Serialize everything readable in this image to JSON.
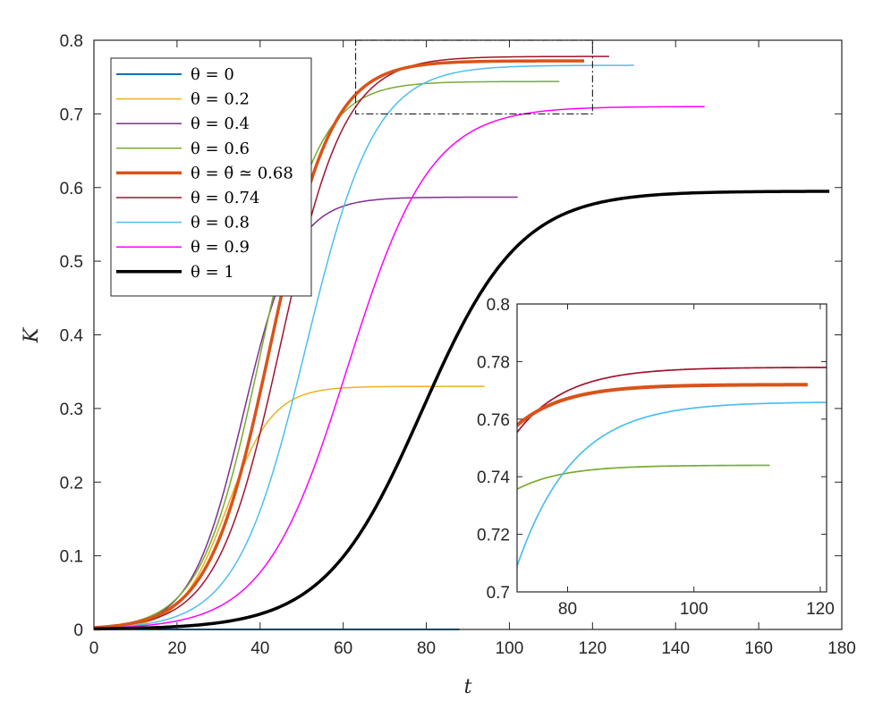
{
  "chart_data": {
    "type": "line",
    "title": "",
    "xlabel": "t",
    "ylabel": "K",
    "xlim": [
      0,
      180
    ],
    "ylim": [
      0,
      0.8
    ],
    "xticks": [
      "0",
      "20",
      "40",
      "60",
      "80",
      "100",
      "120",
      "140",
      "160",
      "180"
    ],
    "yticks": [
      "0",
      "0.1",
      "0.2",
      "0.3",
      "0.4",
      "0.5",
      "0.6",
      "0.7",
      "0.8"
    ],
    "legend_position": "top-left",
    "series": [
      {
        "name": "θ = 0",
        "color": "#0072BD",
        "width": 2,
        "K_inf": 0.0,
        "rate": 0.1,
        "mid": 30,
        "t_end": 88
      },
      {
        "name": "θ = 0.2",
        "color": "#EDB120",
        "width": 1.5,
        "K_inf": 0.33,
        "rate": 0.18,
        "mid": 32,
        "t_end": 94
      },
      {
        "name": "θ = 0.4",
        "color": "#7E2F8E",
        "width": 1.5,
        "K_inf": 0.587,
        "rate": 0.16,
        "mid": 36,
        "t_end": 102
      },
      {
        "name": "θ = 0.6",
        "color": "#77AC30",
        "width": 1.5,
        "K_inf": 0.744,
        "rate": 0.14,
        "mid": 40,
        "t_end": 112
      },
      {
        "name": "θ = θ̃ ≃ 0.68",
        "color": "#D95319",
        "width": 3.5,
        "K_inf": 0.772,
        "rate": 0.135,
        "mid": 42.5,
        "t_end": 118
      },
      {
        "name": "θ = 0.74",
        "color": "#A2142F",
        "width": 1.5,
        "K_inf": 0.778,
        "rate": 0.13,
        "mid": 45,
        "t_end": 124
      },
      {
        "name": "θ = 0.8",
        "color": "#4DBEEE",
        "width": 1.5,
        "K_inf": 0.766,
        "rate": 0.12,
        "mid": 51,
        "t_end": 130
      },
      {
        "name": "θ = 0.9",
        "color": "#FF00FF",
        "width": 1.5,
        "K_inf": 0.71,
        "rate": 0.1,
        "mid": 61,
        "t_end": 147
      },
      {
        "name": "θ = 1",
        "color": "#000000",
        "width": 3.5,
        "K_inf": 0.595,
        "rate": 0.085,
        "mid": 79,
        "t_end": 177
      }
    ],
    "zoom_box": {
      "xlim": [
        63,
        120
      ],
      "ylim": [
        0.7,
        0.8
      ]
    },
    "inset": {
      "xlim": [
        72,
        121
      ],
      "ylim": [
        0.7,
        0.8
      ],
      "xticks": [
        "80",
        "100",
        "120"
      ],
      "yticks": [
        "0.7",
        "0.72",
        "0.74",
        "0.76",
        "0.78",
        "0.8"
      ],
      "series": [
        "θ = 0.6",
        "θ = θ̃ ≃ 0.68",
        "θ = 0.74",
        "θ = 0.8"
      ]
    }
  }
}
